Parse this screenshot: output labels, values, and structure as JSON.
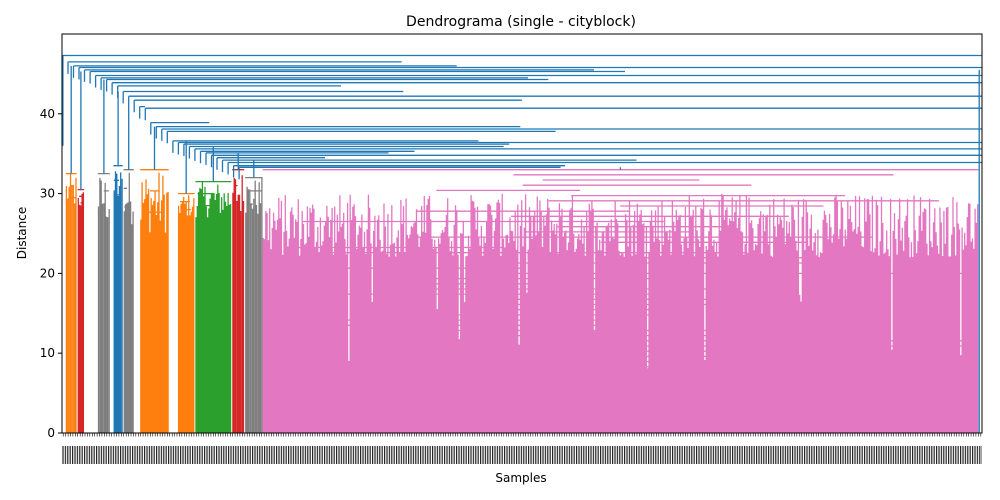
{
  "chart_data": {
    "type": "dendrogram",
    "title": "Dendrograma (single - cityblock)",
    "xlabel": "Samples",
    "ylabel": "Distance",
    "ylim": [
      0,
      50
    ],
    "yticks": [
      0,
      10,
      20,
      30,
      40
    ],
    "grid": false,
    "legend": "none",
    "colors": {
      "above_threshold": "#1f77b4",
      "clusters": [
        "#ff7f0e",
        "#d62728",
        "#7f7f7f",
        "#1f77b4",
        "#ff7f0e",
        "#2ca02c",
        "#d62728",
        "#7f7f7f",
        "#e377c2"
      ]
    },
    "clusters": [
      {
        "color": "#ff7f0e",
        "x_start": 0.4,
        "x_end": 1.6,
        "merge_height": 32.5,
        "min_height": 28
      },
      {
        "color": "#d62728",
        "x_start": 1.7,
        "x_end": 2.4,
        "merge_height": 30.5,
        "min_height": 28
      },
      {
        "color": "#7f7f7f",
        "x_start": 3.9,
        "x_end": 5.2,
        "merge_height": 32.5,
        "min_height": 26
      },
      {
        "color": "#1f77b4",
        "x_start": 5.6,
        "x_end": 6.6,
        "merge_height": 33.5,
        "min_height": 28
      },
      {
        "color": "#7f7f7f",
        "x_start": 6.7,
        "x_end": 7.8,
        "merge_height": 33.0,
        "min_height": 26
      },
      {
        "color": "#ff7f0e",
        "x_start": 8.5,
        "x_end": 11.6,
        "merge_height": 33.0,
        "min_height": 25
      },
      {
        "color": "#ff7f0e",
        "x_start": 12.6,
        "x_end": 14.4,
        "merge_height": 30.0,
        "min_height": 27
      },
      {
        "color": "#2ca02c",
        "x_start": 14.5,
        "x_end": 18.4,
        "merge_height": 31.5,
        "min_height": 27
      },
      {
        "color": "#d62728",
        "x_start": 18.5,
        "x_end": 19.8,
        "merge_height": 33.0,
        "min_height": 27
      },
      {
        "color": "#7f7f7f",
        "x_start": 19.9,
        "x_end": 21.8,
        "merge_height": 32.0,
        "min_height": 27
      },
      {
        "color": "#e377c2",
        "x_start": 21.8,
        "x_end": 99.6,
        "merge_height": 33.0,
        "min_height": 7
      }
    ],
    "top_merges": [
      47.3,
      46.5,
      46.0,
      45.8,
      45.5,
      45.3,
      44.8,
      44.5,
      44.3,
      43.9,
      43.5,
      42.8,
      42.2,
      41.7,
      40.9,
      40.7,
      38.9,
      38.4,
      38.1,
      37.8,
      36.6,
      36.4,
      36.2,
      35.9,
      35.6,
      35.3,
      35.1,
      34.8,
      34.5,
      34.2,
      33.9,
      33.5,
      33.3
    ]
  }
}
